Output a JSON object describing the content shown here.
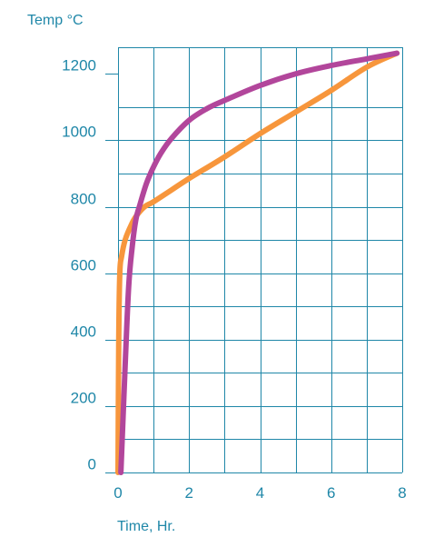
{
  "chart_data": {
    "type": "line",
    "title": "",
    "xlabel": "Time, Hr.",
    "ylabel": "Temp °C",
    "xlim": [
      0,
      8
    ],
    "ylim": [
      0,
      1280
    ],
    "x_ticks": [
      0,
      2,
      4,
      6,
      8
    ],
    "y_ticks": [
      0,
      200,
      400,
      600,
      800,
      1000,
      1200
    ],
    "grid": true,
    "grid_x_step": 1,
    "grid_y_step": 100,
    "series": [
      {
        "color": "#f7963c",
        "x": [
          0.0,
          0.02,
          0.05,
          0.1,
          0.2,
          0.35,
          0.5,
          0.75,
          1.0,
          1.5,
          2.0,
          3.0,
          4.0,
          5.0,
          6.0,
          7.0,
          7.85
        ],
        "y": [
          0,
          400,
          600,
          650,
          700,
          740,
          770,
          800,
          815,
          850,
          885,
          950,
          1020,
          1085,
          1150,
          1220,
          1262
        ]
      },
      {
        "color": "#b2469b",
        "x": [
          0.08,
          0.2,
          0.3,
          0.4,
          0.5,
          0.6,
          0.8,
          1.0,
          1.2,
          1.5,
          2.0,
          2.5,
          3.0,
          4.0,
          5.0,
          6.0,
          7.0,
          7.85
        ],
        "y": [
          0,
          320,
          560,
          680,
          760,
          800,
          870,
          920,
          960,
          1005,
          1060,
          1095,
          1120,
          1165,
          1200,
          1225,
          1245,
          1262
        ]
      }
    ]
  }
}
